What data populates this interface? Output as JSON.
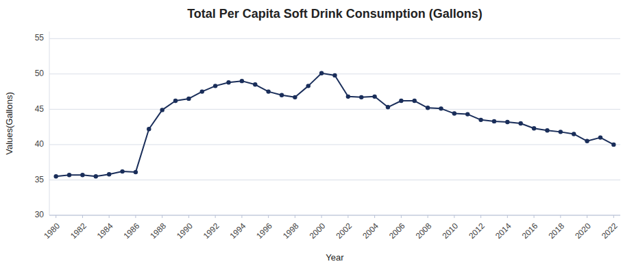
{
  "chart_data": {
    "type": "line",
    "title": "Total Per Capita Soft Drink Consumption (Gallons)",
    "xlabel": "Year",
    "ylabel": "Values(Gallons)",
    "x": [
      1980,
      1981,
      1982,
      1983,
      1984,
      1985,
      1986,
      1987,
      1988,
      1989,
      1990,
      1991,
      1992,
      1993,
      1994,
      1995,
      1996,
      1997,
      1998,
      1999,
      2000,
      2001,
      2002,
      2003,
      2004,
      2005,
      2006,
      2007,
      2008,
      2009,
      2010,
      2011,
      2012,
      2013,
      2014,
      2015,
      2016,
      2017,
      2018,
      2019,
      2020,
      2021,
      2022
    ],
    "values": [
      35.5,
      35.7,
      35.7,
      35.5,
      35.8,
      36.2,
      36.1,
      42.2,
      44.9,
      46.2,
      46.5,
      47.5,
      48.3,
      48.8,
      49.0,
      48.5,
      47.5,
      47.0,
      46.7,
      48.3,
      50.1,
      49.8,
      46.8,
      46.7,
      46.8,
      45.3,
      46.2,
      46.2,
      45.2,
      45.1,
      44.4,
      44.3,
      43.5,
      43.3,
      43.2,
      43.0,
      42.3,
      42.0,
      41.8,
      41.5,
      40.5,
      41.0,
      40.0
    ],
    "color": "#1a2e5a",
    "marker": "circle",
    "xlim": [
      1979.5,
      2022.5
    ],
    "xticks": [
      1980,
      1982,
      1984,
      1986,
      1988,
      1990,
      1992,
      1994,
      1996,
      1998,
      2000,
      2002,
      2004,
      2006,
      2008,
      2010,
      2012,
      2014,
      2016,
      2018,
      2020,
      2022
    ],
    "ylim": [
      30,
      56
    ],
    "yticks": [
      30,
      35,
      40,
      45,
      50,
      55
    ],
    "grid": true
  }
}
